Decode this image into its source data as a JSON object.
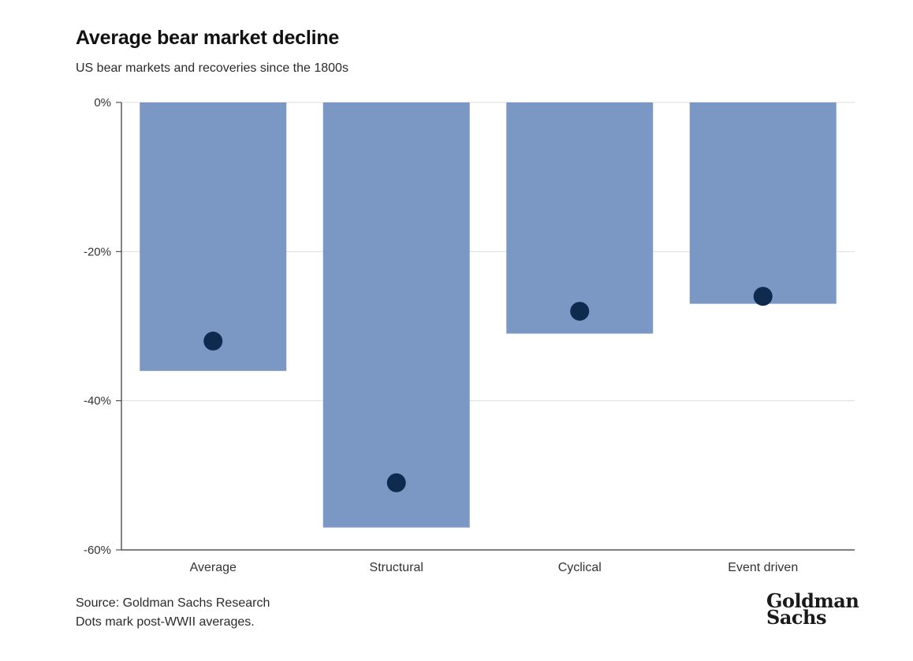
{
  "chart_data": {
    "type": "bar",
    "title": "Average bear market decline",
    "subtitle": "US bear markets and recoveries since the 1800s",
    "categories": [
      "Average",
      "Structural",
      "Cyclical",
      "Event driven"
    ],
    "series": [
      {
        "name": "Average decline",
        "values": [
          -36,
          -57,
          -31,
          -27
        ],
        "color": "#7b98c4"
      },
      {
        "name": "Post-WWII average",
        "marker": "dot",
        "values": [
          -32,
          -51,
          -28,
          -26
        ],
        "color": "#0f2a4f"
      }
    ],
    "yticks": [
      0,
      -20,
      -40,
      -60
    ],
    "ytick_labels": [
      "0%",
      "-20%",
      "-40%",
      "-60%"
    ],
    "ylim": [
      -60,
      0
    ],
    "xlabel": "",
    "ylabel": "",
    "grid": true
  },
  "footer": {
    "source": "Source: Goldman Sachs Research",
    "note": "Dots mark post-WWII averages."
  },
  "logo": {
    "line1": "Goldman",
    "line2": "Sachs"
  },
  "colors": {
    "axis": "#333333",
    "grid": "#dddddd",
    "bar": "#7b98c4",
    "dot": "#0f2a4f"
  }
}
